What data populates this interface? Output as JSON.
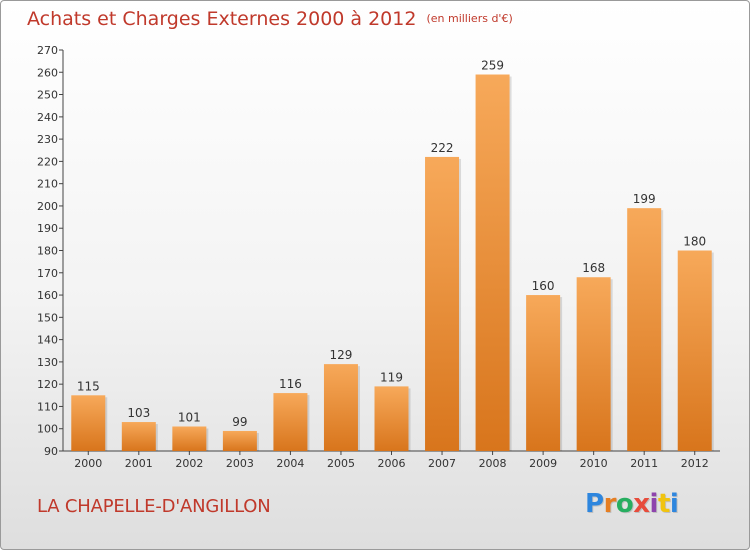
{
  "title": "Achats et Charges Externes 2000 à 2012",
  "unit": "(en milliers d'€)",
  "commune": "LA CHAPELLE-D'ANGILLON",
  "logo": {
    "text": "Proxiti",
    "letter_colors": [
      "#2e86de",
      "#e67e22",
      "#27ae60",
      "#e74c3c",
      "#8e44ad",
      "#f1c40f",
      "#2e86de"
    ]
  },
  "colors": {
    "bar_top": "#f7a95a",
    "bar_bottom": "#d8751c",
    "title": "#c0392b",
    "axis": "#555555"
  },
  "chart_data": {
    "type": "bar",
    "categories": [
      "2000",
      "2001",
      "2002",
      "2003",
      "2004",
      "2005",
      "2006",
      "2007",
      "2008",
      "2009",
      "2010",
      "2011",
      "2012"
    ],
    "values": [
      115,
      103,
      101,
      99,
      116,
      129,
      119,
      222,
      259,
      160,
      168,
      199,
      180
    ],
    "ylim": [
      90,
      270
    ],
    "yticks": [
      90,
      100,
      110,
      120,
      130,
      140,
      150,
      160,
      170,
      180,
      190,
      200,
      210,
      220,
      230,
      240,
      250,
      260,
      270
    ],
    "grid": false,
    "data_labels": true
  }
}
